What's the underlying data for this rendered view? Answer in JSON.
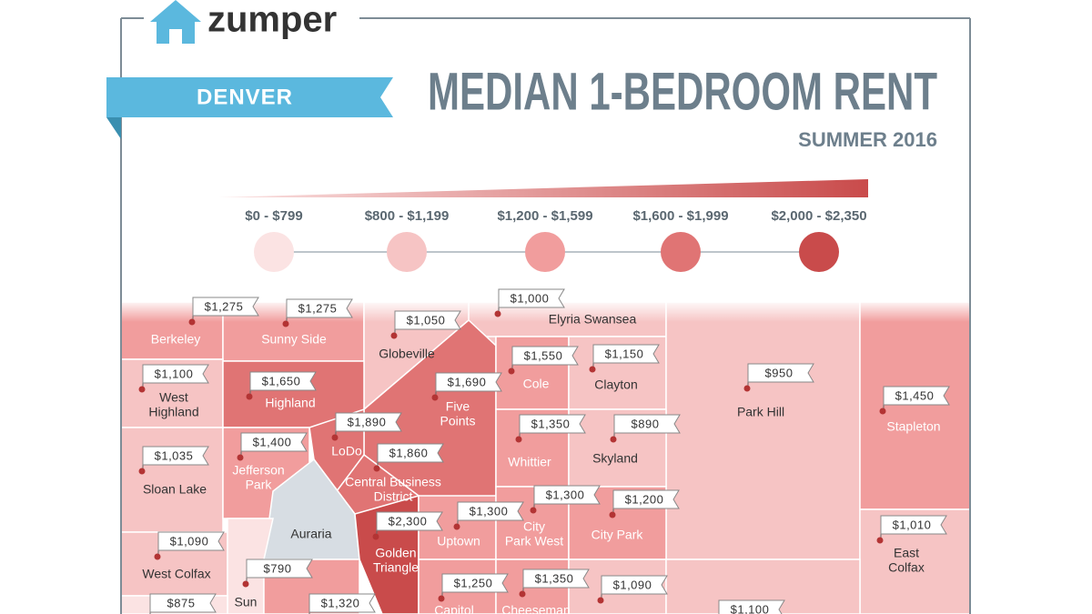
{
  "header": {
    "logo": "zumper",
    "city": "DENVER",
    "title": "MEDIAN 1-BEDROOM RENT",
    "subtitle": "SUMMER 2016"
  },
  "legend": [
    {
      "label": "$0 - $799",
      "color": "#fbe3e3"
    },
    {
      "label": "$800 - $1,199",
      "color": "#f6c4c4"
    },
    {
      "label": "$1,200 - $1,599",
      "color": "#f19d9d"
    },
    {
      "label": "$1,600 - $1,999",
      "color": "#e07474"
    },
    {
      "label": "$2,000 - $2,350",
      "color": "#c94b4b"
    }
  ],
  "neighborhoods": [
    {
      "name": [
        "Berkeley"
      ],
      "rent": "$1,275"
    },
    {
      "name": [
        "Sunny Side"
      ],
      "rent": "$1,275"
    },
    {
      "name": [
        "Globeville"
      ],
      "rent": "$1,050"
    },
    {
      "name": [
        "Elyria Swansea"
      ],
      "rent": "$1,000"
    },
    {
      "name": [
        "West",
        "Highland"
      ],
      "rent": "$1,100"
    },
    {
      "name": [
        "Highland"
      ],
      "rent": "$1,650"
    },
    {
      "name": [
        "Five",
        "Points"
      ],
      "rent": "$1,690"
    },
    {
      "name": [
        "Cole"
      ],
      "rent": "$1,550"
    },
    {
      "name": [
        "Clayton"
      ],
      "rent": "$1,150"
    },
    {
      "name": [
        "Park Hill"
      ],
      "rent": "$950"
    },
    {
      "name": [
        "Stapleton"
      ],
      "rent": "$1,450"
    },
    {
      "name": [
        "LoDo"
      ],
      "rent": "$1,890"
    },
    {
      "name": [
        "Sloan Lake"
      ],
      "rent": "$1,035"
    },
    {
      "name": [
        "Jefferson",
        "Park"
      ],
      "rent": "$1,400"
    },
    {
      "name": [
        "Central Business",
        "District"
      ],
      "rent": "$1,860"
    },
    {
      "name": [
        "Whittier"
      ],
      "rent": "$1,350"
    },
    {
      "name": [
        "Skyland"
      ],
      "rent": "$890"
    },
    {
      "name": [
        "Auraria"
      ]
    },
    {
      "name": [
        "Uptown"
      ],
      "rent": "$1,300"
    },
    {
      "name": [
        "Golden",
        "Triangle"
      ],
      "rent": "$2,300"
    },
    {
      "name": [
        "City",
        "Park West"
      ],
      "rent": "$1,300"
    },
    {
      "name": [
        "City Park"
      ],
      "rent": "$1,200"
    },
    {
      "name": [
        "West Colfax"
      ],
      "rent": "$1,090"
    },
    {
      "name": [
        "East",
        "Colfax"
      ],
      "rent": "$1,010"
    },
    {
      "name": [
        "Sun"
      ],
      "rent": "$790"
    },
    {
      "rent": "$875"
    },
    {
      "rent": "$1,320"
    },
    {
      "name": [
        "Capitol"
      ],
      "rent": "$1,250"
    },
    {
      "name": [
        "Cheeseman"
      ],
      "rent": "$1,350"
    },
    {
      "rent": "$1,090"
    },
    {
      "rent": "$1,100"
    }
  ]
}
